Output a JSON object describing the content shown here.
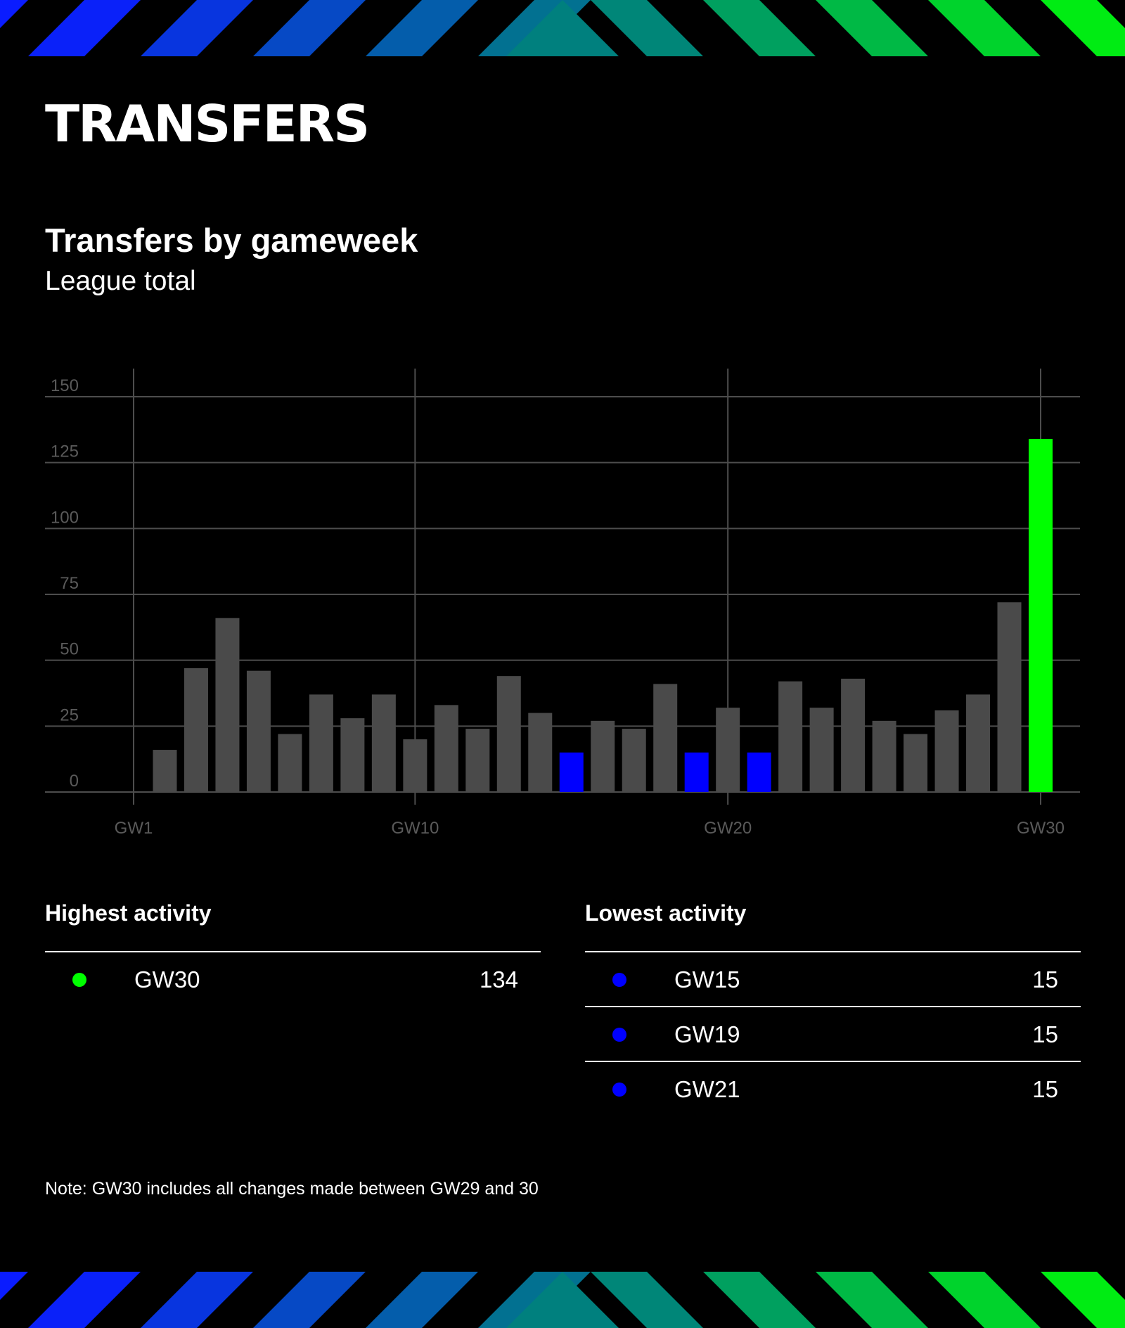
{
  "header": {
    "title": "TRANSFERS"
  },
  "colors": {
    "background": "#000000",
    "bar_default": "#4a4a4a",
    "bar_highest": "#00ff00",
    "bar_lowest": "#0000ff",
    "grid": "#4d4d4d",
    "stripe_start": "#0a1cff",
    "stripe_mid": "#00807e",
    "stripe_end": "#00ff00"
  },
  "chart_data": {
    "type": "bar",
    "title": "Transfers by gameweek",
    "subtitle": "League total",
    "x_ticks": [
      "GW1",
      "GW10",
      "GW20",
      "GW30"
    ],
    "y_ticks": [
      0,
      25,
      50,
      75,
      100,
      125,
      150
    ],
    "ylim": [
      0,
      150
    ],
    "grid": true,
    "categories": [
      "GW1",
      "GW2",
      "GW3",
      "GW4",
      "GW5",
      "GW6",
      "GW7",
      "GW8",
      "GW9",
      "GW10",
      "GW11",
      "GW12",
      "GW13",
      "GW14",
      "GW15",
      "GW16",
      "GW17",
      "GW18",
      "GW19",
      "GW20",
      "GW21",
      "GW22",
      "GW23",
      "GW24",
      "GW25",
      "GW26",
      "GW27",
      "GW28",
      "GW29",
      "GW30"
    ],
    "values": [
      null,
      16,
      47,
      66,
      46,
      22,
      37,
      28,
      37,
      20,
      33,
      24,
      44,
      30,
      15,
      27,
      24,
      41,
      15,
      32,
      15,
      42,
      32,
      43,
      27,
      22,
      31,
      37,
      72,
      134
    ],
    "highlight_highest": [
      "GW30"
    ],
    "highlight_lowest": [
      "GW15",
      "GW19",
      "GW21"
    ]
  },
  "highest": {
    "heading": "Highest activity",
    "rows": [
      {
        "label": "GW30",
        "value": "134"
      }
    ]
  },
  "lowest": {
    "heading": "Lowest activity",
    "rows": [
      {
        "label": "GW15",
        "value": "15"
      },
      {
        "label": "GW19",
        "value": "15"
      },
      {
        "label": "GW21",
        "value": "15"
      }
    ]
  },
  "note": "Note: GW30 includes all changes made between GW29 and 30"
}
